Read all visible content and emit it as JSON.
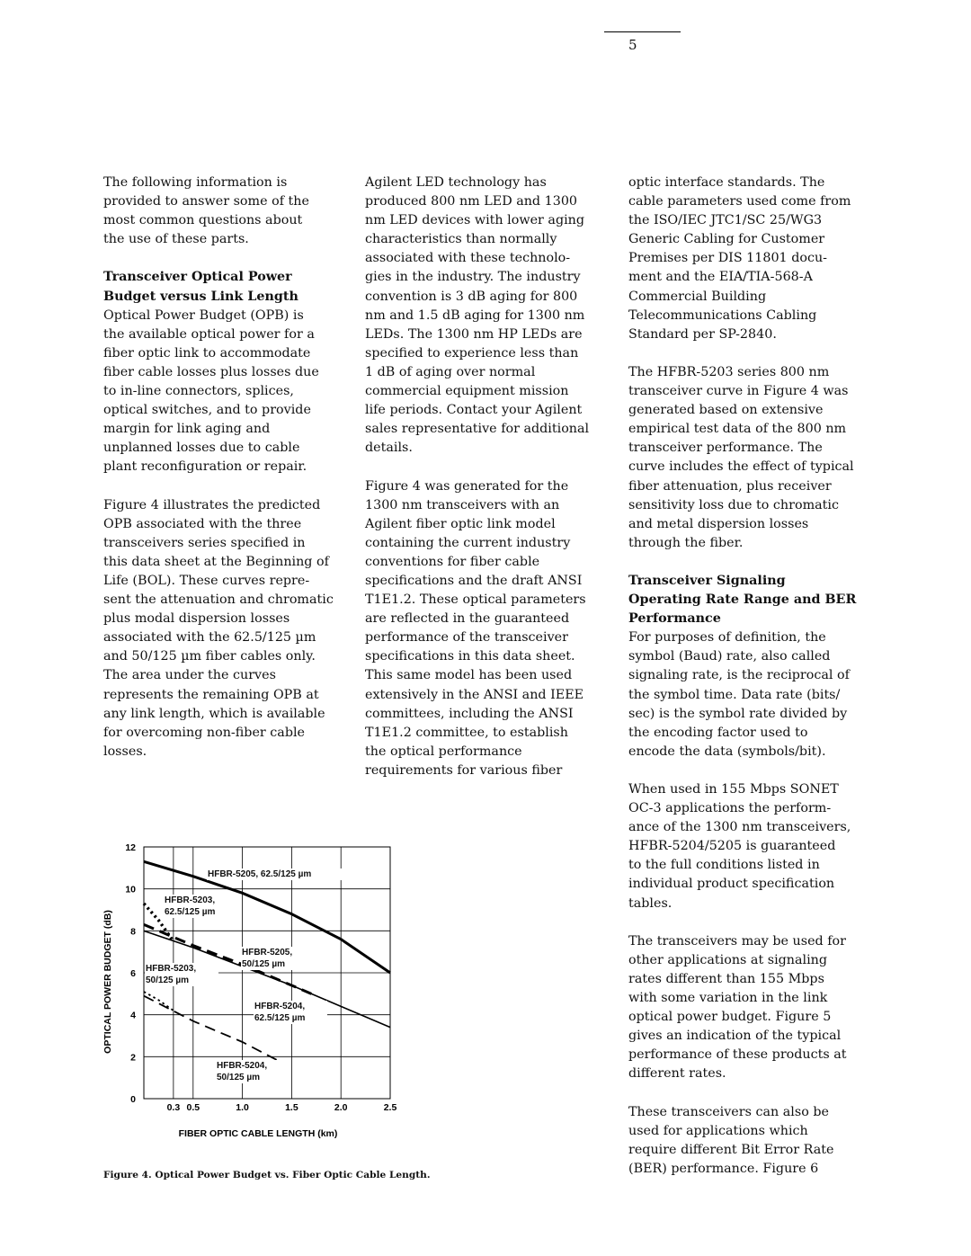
{
  "page_number": "5",
  "columns": [
    [
      {
        "lines": [
          "The following information is",
          "provided to answer some of the",
          "most common questions about",
          "the use of these parts."
        ]
      },
      {
        "heading": [
          "Transceiver Optical Power",
          "Budget versus Link Length"
        ],
        "lines": [
          "Optical Power Budget (OPB) is",
          "the available optical power for a",
          "fiber optic link to accommodate",
          "fiber cable losses plus losses due",
          "to in-line connectors, splices,",
          "optical switches, and to provide",
          "margin for link aging and",
          "unplanned losses due to cable",
          "plant reconfiguration or repair."
        ]
      },
      {
        "lines": [
          "Figure 4 illustrates the predicted",
          "OPB associated with the three",
          "transceivers series specified in",
          "this data sheet at the Beginning of",
          "Life (BOL). These curves repre-",
          "sent the attenuation and chromatic",
          "plus modal dispersion losses",
          "associated with the 62.5/125 µm",
          "and 50/125 µm fiber cables only.",
          "The area under the curves",
          "represents the remaining OPB at",
          "any link length, which is available",
          "for overcoming non-fiber cable",
          "losses."
        ]
      }
    ],
    [
      {
        "lines": [
          "Agilent LED technology has",
          "produced 800 nm LED and 1300",
          "nm LED devices with lower aging",
          "characteristics than normally",
          "associated with these technolo-",
          "gies in the industry. The industry",
          "convention is 3 dB aging for 800",
          "nm and 1.5 dB aging for 1300 nm",
          "LEDs. The 1300 nm HP LEDs are",
          "specified to experience less than",
          "1 dB of aging over normal",
          "commercial equipment mission",
          "life periods. Contact your Agilent",
          "sales representative for additional",
          "details."
        ]
      },
      {
        "lines": [
          "Figure 4 was generated for the",
          "1300 nm transceivers with an",
          "Agilent fiber optic link model",
          "containing the current industry",
          "conventions for fiber cable",
          "specifications and the draft ANSI",
          "T1E1.2. These optical parameters",
          "are reflected in the guaranteed",
          "performance of the transceiver",
          "specifications in this data sheet.",
          "This same model has been used",
          "extensively in the ANSI and IEEE",
          "committees, including the ANSI",
          "T1E1.2 committee, to establish",
          "the optical performance",
          "requirements for various fiber"
        ]
      }
    ],
    [
      {
        "lines": [
          "optic interface standards. The",
          "cable parameters used come from",
          "the ISO/IEC JTC1/SC 25/WG3",
          "Generic Cabling for Customer",
          "Premises per DIS 11801 docu-",
          "ment and the EIA/TIA-568-A",
          "Commercial Building",
          "Telecommunications Cabling",
          "Standard per SP-2840."
        ]
      },
      {
        "lines": [
          "The HFBR-5203 series 800 nm",
          "transceiver curve in Figure 4 was",
          "generated based on extensive",
          "empirical test data of the 800 nm",
          "transceiver performance. The",
          "curve includes the effect of typical",
          "fiber attenuation, plus receiver",
          "sensitivity loss due to chromatic",
          "and metal dispersion losses",
          "through the fiber."
        ]
      },
      {
        "heading": [
          "Transceiver Signaling",
          "Operating Rate Range and BER",
          "Performance"
        ],
        "lines": [
          "For purposes of definition, the",
          "symbol (Baud) rate, also called",
          "signaling rate, is the reciprocal of",
          "the symbol time. Data rate (bits/",
          "sec) is the symbol rate divided by",
          "the encoding factor used to",
          "encode the data (symbols/bit)."
        ]
      },
      {
        "lines": [
          "When used in 155 Mbps SONET",
          "OC-3 applications the perform-",
          "ance of the 1300 nm transceivers,",
          "HFBR-5204/5205 is guaranteed",
          "to the full conditions listed in",
          "individual product specification",
          "tables."
        ]
      },
      {
        "lines": [
          "The transceivers may be used for",
          "other applications at signaling",
          "rates different than 155 Mbps",
          "with some variation in the link",
          "optical power budget.  Figure 5",
          "gives an indication of the typical",
          "performance of these  products at",
          "different rates."
        ]
      },
      {
        "lines": [
          "These transceivers can also be",
          "used for applications which",
          "require different Bit Error Rate",
          "(BER) performance. Figure 6"
        ]
      }
    ]
  ],
  "caption": "Figure 4. Optical Power Budget vs. Fiber Optic Cable Length.",
  "chart_data": {
    "type": "line",
    "x_label": "FIBER OPTIC CABLE LENGTH (km)",
    "y_label": "OPTICAL POWER BUDGET (dB)",
    "xlim": [
      0,
      2.5
    ],
    "ylim": [
      0,
      12
    ],
    "xticks": [
      0.3,
      0.5,
      {
        "value": 1,
        "label": "1.0"
      },
      1.5,
      {
        "value": 2,
        "label": "2.0"
      },
      2.5
    ],
    "yticks": [
      0,
      2,
      4,
      6,
      8,
      10,
      12
    ],
    "grid": true,
    "series": [
      {
        "name": "HFBR-5205, 62.5/125 µm",
        "color": "#000000",
        "style": "solid",
        "line_width": 3,
        "x": [
          0,
          0.5,
          1,
          1.5,
          2,
          2.5
        ],
        "values": [
          11.3,
          10.6,
          9.8,
          8.8,
          7.6,
          6.0
        ]
      },
      {
        "name": "HFBR-5203, 62.5/125 µm",
        "color": "#000000",
        "style": "dotted",
        "line_width": 3.5,
        "x": [
          0,
          0.15,
          0.3
        ],
        "values": [
          9.3,
          8.5,
          7.5
        ]
      },
      {
        "name": "HFBR-5205, 50/125 µm",
        "color": "#000000",
        "style": "solid",
        "line_width": 1.6,
        "x": [
          0,
          0.5,
          1,
          1.5,
          2,
          2.5
        ],
        "values": [
          8.0,
          7.2,
          6.3,
          5.4,
          4.4,
          3.4
        ]
      },
      {
        "name": "HFBR-5203, 50/125 µm",
        "color": "#000000",
        "style": "dotted",
        "line_width": 1.8,
        "x": [
          0,
          0.15,
          0.3
        ],
        "values": [
          5.1,
          4.7,
          4.2
        ]
      },
      {
        "name": "HFBR-5204, 62.5/125 µm",
        "color": "#000000",
        "style": "dashed",
        "line_width": 3,
        "x": [
          0,
          0.5,
          1,
          1.7
        ],
        "values": [
          8.3,
          7.3,
          6.4,
          5.0
        ]
      },
      {
        "name": "HFBR-5204, 50/125 µm",
        "color": "#000000",
        "style": "dashed",
        "line_width": 1.8,
        "x": [
          0,
          0.5,
          1,
          1.45
        ],
        "values": [
          4.9,
          3.7,
          2.7,
          1.6
        ]
      }
    ]
  }
}
